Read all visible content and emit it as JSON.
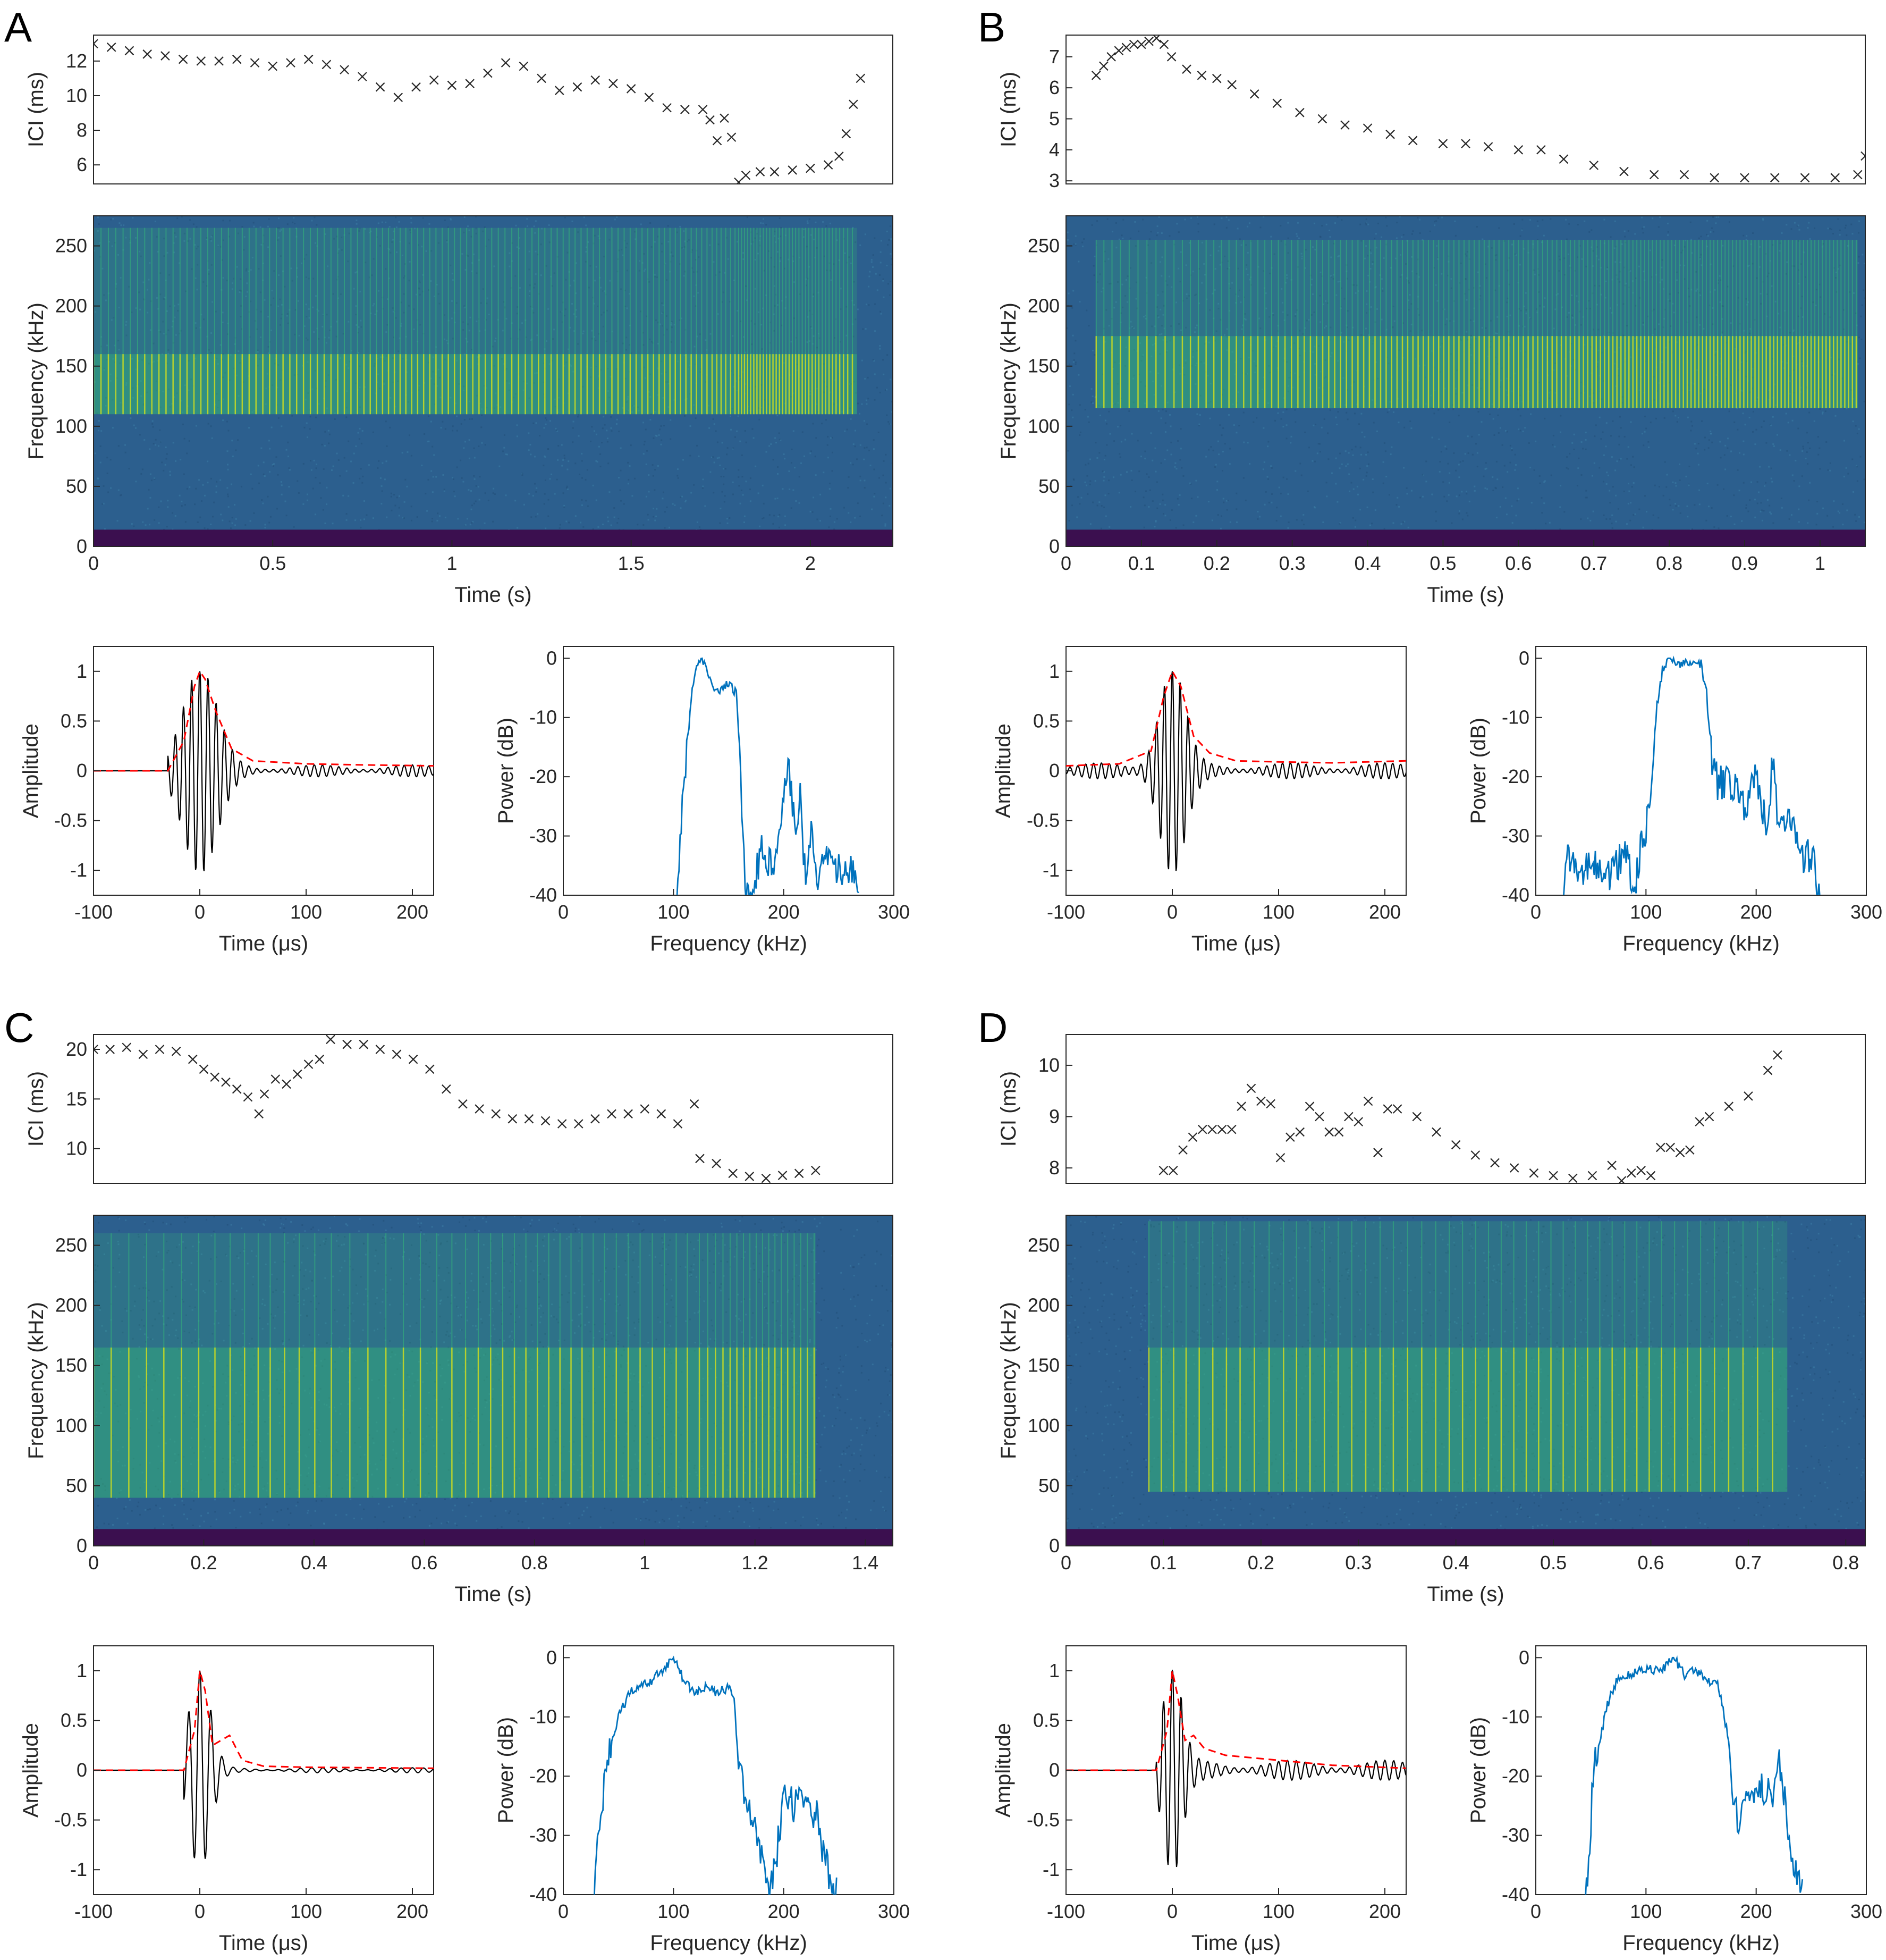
{
  "panel_labels": [
    "A",
    "B",
    "C",
    "D"
  ],
  "colors": {
    "marker": "#262626",
    "waveform": "#000000",
    "envelope": "#ff0000",
    "spectrum": "#0072bd",
    "spec_bg": "#2c5f8e",
    "spec_floor": "#3b0f4f",
    "spec_high": "#d8e219",
    "spec_mid": "#35b779"
  },
  "chart_data": [
    {
      "panel": "A",
      "ici": {
        "type": "scatter",
        "ylabel": "ICI (ms)",
        "xlim": [
          0,
          2.23
        ],
        "ylim": [
          4.9,
          13.5
        ],
        "yticks": [
          6,
          8,
          10,
          12
        ],
        "x": [
          0.0,
          0.05,
          0.1,
          0.15,
          0.2,
          0.25,
          0.3,
          0.35,
          0.4,
          0.45,
          0.5,
          0.55,
          0.6,
          0.65,
          0.7,
          0.75,
          0.8,
          0.85,
          0.9,
          0.95,
          1.0,
          1.05,
          1.1,
          1.15,
          1.2,
          1.25,
          1.3,
          1.35,
          1.4,
          1.45,
          1.5,
          1.55,
          1.6,
          1.65,
          1.7,
          1.72,
          1.74,
          1.76,
          1.78,
          1.8,
          1.82,
          1.86,
          1.9,
          1.95,
          2.0,
          2.05,
          2.08,
          2.1,
          2.12,
          2.14
        ],
        "y": [
          13.0,
          12.8,
          12.6,
          12.4,
          12.3,
          12.1,
          12.0,
          12.0,
          12.1,
          11.9,
          11.7,
          11.9,
          12.1,
          11.8,
          11.5,
          11.1,
          10.5,
          9.9,
          10.5,
          10.9,
          10.6,
          10.7,
          11.3,
          11.9,
          11.7,
          11.0,
          10.3,
          10.5,
          10.9,
          10.7,
          10.4,
          9.9,
          9.3,
          9.2,
          9.2,
          8.6,
          7.4,
          8.7,
          7.6,
          5.0,
          5.4,
          5.6,
          5.6,
          5.7,
          5.8,
          6.0,
          6.5,
          7.8,
          9.5,
          11.0
        ]
      },
      "spectrogram": {
        "type": "heatmap",
        "xlabel": "Time (s)",
        "ylabel": "Frequency (kHz)",
        "xlim": [
          0,
          2.23
        ],
        "ylim": [
          0,
          275
        ],
        "xticks": [
          0,
          0.5,
          1,
          1.5,
          2
        ],
        "yticks": [
          0,
          50,
          100,
          150,
          200,
          250
        ],
        "t_start": 0.0,
        "t_end": 2.13,
        "band_low": 110,
        "band_high": 160,
        "upper_end": 265
      },
      "waveform": {
        "type": "line",
        "xlabel": "Time (μs)",
        "ylabel": "Amplitude",
        "xlim": [
          -100,
          220
        ],
        "ylim": [
          -1.25,
          1.25
        ],
        "xticks": [
          -100,
          0,
          100,
          200
        ],
        "yticks": [
          -1,
          -0.5,
          0,
          0.5,
          1
        ],
        "onset": -30,
        "carrier_khz": 130,
        "decay_us": 16,
        "tail_amp": 0.06,
        "env_t": [
          -100,
          -30,
          -15,
          -5,
          0,
          5,
          15,
          30,
          50,
          100,
          150,
          220
        ],
        "env_v": [
          0,
          0,
          0.3,
          0.85,
          1.0,
          0.92,
          0.6,
          0.22,
          0.1,
          0.07,
          0.06,
          0.05
        ]
      },
      "spectrum": {
        "type": "line",
        "xlabel": "Frequency (kHz)",
        "ylabel": "Power (dB)",
        "xlim": [
          0,
          300
        ],
        "ylim": [
          -40,
          2
        ],
        "xticks": [
          0,
          100,
          200,
          300
        ],
        "yticks": [
          -40,
          -30,
          -20,
          -10,
          0
        ],
        "x": [
          103,
          110,
          117,
          121,
          125,
          128,
          132,
          137,
          142,
          150,
          157,
          162,
          166,
          170,
          180,
          190,
          200,
          205,
          210,
          215,
          220,
          225,
          230,
          240,
          250,
          260,
          268
        ],
        "y": [
          -40,
          -20,
          -5,
          -2,
          0,
          -1,
          -3,
          -5,
          -6,
          -4,
          -6,
          -24,
          -40,
          -40,
          -32,
          -36,
          -22,
          -19,
          -28,
          -23,
          -38,
          -29,
          -38,
          -34,
          -36,
          -35,
          -40
        ]
      }
    },
    {
      "panel": "B",
      "ici": {
        "type": "scatter",
        "ylabel": "ICI (ms)",
        "xlim": [
          0,
          1.06
        ],
        "ylim": [
          2.9,
          7.7
        ],
        "yticks": [
          3,
          4,
          5,
          6,
          7
        ],
        "x": [
          0.04,
          0.05,
          0.06,
          0.07,
          0.08,
          0.09,
          0.1,
          0.11,
          0.12,
          0.13,
          0.14,
          0.16,
          0.18,
          0.2,
          0.22,
          0.25,
          0.28,
          0.31,
          0.34,
          0.37,
          0.4,
          0.43,
          0.46,
          0.5,
          0.53,
          0.56,
          0.6,
          0.63,
          0.66,
          0.7,
          0.74,
          0.78,
          0.82,
          0.86,
          0.9,
          0.94,
          0.98,
          1.02,
          1.05,
          1.06
        ],
        "y": [
          6.4,
          6.7,
          7.0,
          7.2,
          7.3,
          7.4,
          7.4,
          7.5,
          7.6,
          7.4,
          7.0,
          6.6,
          6.4,
          6.3,
          6.1,
          5.8,
          5.5,
          5.2,
          5.0,
          4.8,
          4.7,
          4.5,
          4.3,
          4.2,
          4.2,
          4.1,
          4.0,
          4.0,
          3.7,
          3.5,
          3.3,
          3.2,
          3.2,
          3.1,
          3.1,
          3.1,
          3.1,
          3.1,
          3.2,
          3.8
        ]
      },
      "spectrogram": {
        "type": "heatmap",
        "xlabel": "Time (s)",
        "ylabel": "Frequency (kHz)",
        "xlim": [
          0,
          1.06
        ],
        "ylim": [
          0,
          275
        ],
        "xticks": [
          0,
          0.1,
          0.2,
          0.3,
          0.4,
          0.5,
          0.6,
          0.7,
          0.8,
          0.9,
          1
        ],
        "yticks": [
          0,
          50,
          100,
          150,
          200,
          250
        ],
        "t_start": 0.04,
        "t_end": 1.05,
        "band_low": 115,
        "band_high": 175,
        "upper_end": 255
      },
      "waveform": {
        "type": "line",
        "xlabel": "Time (μs)",
        "ylabel": "Amplitude",
        "xlim": [
          -100,
          220
        ],
        "ylim": [
          -1.25,
          1.25
        ],
        "xticks": [
          -100,
          0,
          100,
          200
        ],
        "yticks": [
          -1,
          -0.5,
          0,
          0.5,
          1
        ],
        "onset": -100,
        "carrier_khz": 135,
        "decay_us": 12,
        "tail_amp": 0.08,
        "env_t": [
          -100,
          -50,
          -20,
          -8,
          0,
          8,
          20,
          35,
          60,
          100,
          150,
          220
        ],
        "env_v": [
          0.05,
          0.07,
          0.2,
          0.75,
          1.0,
          0.85,
          0.35,
          0.18,
          0.1,
          0.09,
          0.08,
          0.1
        ]
      },
      "spectrum": {
        "type": "line",
        "xlabel": "Frequency (kHz)",
        "ylabel": "Power (dB)",
        "xlim": [
          0,
          300
        ],
        "ylim": [
          -40,
          2
        ],
        "xticks": [
          0,
          100,
          200,
          300
        ],
        "yticks": [
          -40,
          -30,
          -20,
          -10,
          0
        ],
        "x": [
          25,
          30,
          40,
          50,
          60,
          70,
          80,
          90,
          95,
          100,
          105,
          110,
          115,
          120,
          130,
          140,
          150,
          155,
          160,
          165,
          170,
          180,
          190,
          200,
          210,
          215,
          220,
          230,
          240,
          250,
          258
        ],
        "y": [
          -40,
          -33,
          -38,
          -34,
          -37,
          -36,
          -33,
          -38,
          -32,
          -30,
          -20,
          -8,
          -2,
          0,
          -1,
          -1,
          -1,
          -6,
          -18,
          -21,
          -21,
          -21,
          -25,
          -19,
          -30,
          -17,
          -28,
          -26,
          -34,
          -33,
          -40
        ]
      }
    },
    {
      "panel": "C",
      "ici": {
        "type": "scatter",
        "ylabel": "ICI (ms)",
        "xlim": [
          0,
          1.45
        ],
        "ylim": [
          6.5,
          21.5
        ],
        "yticks": [
          10,
          15,
          20
        ],
        "x": [
          0.0,
          0.03,
          0.06,
          0.09,
          0.12,
          0.15,
          0.18,
          0.2,
          0.22,
          0.24,
          0.26,
          0.28,
          0.3,
          0.31,
          0.33,
          0.35,
          0.37,
          0.39,
          0.41,
          0.43,
          0.46,
          0.49,
          0.52,
          0.55,
          0.58,
          0.61,
          0.64,
          0.67,
          0.7,
          0.73,
          0.76,
          0.79,
          0.82,
          0.85,
          0.88,
          0.91,
          0.94,
          0.97,
          1.0,
          1.03,
          1.06,
          1.09,
          1.1,
          1.13,
          1.16,
          1.19,
          1.22,
          1.25,
          1.28,
          1.31
        ],
        "y": [
          20.0,
          20.0,
          20.2,
          19.5,
          20.0,
          19.8,
          19.0,
          18.0,
          17.2,
          16.7,
          16.0,
          15.2,
          13.5,
          15.5,
          17.0,
          16.5,
          17.5,
          18.5,
          19.0,
          21.0,
          20.5,
          20.5,
          20.0,
          19.5,
          19.0,
          18.0,
          16.0,
          14.5,
          14.0,
          13.5,
          13.0,
          13.0,
          12.8,
          12.5,
          12.5,
          13.0,
          13.5,
          13.5,
          14.0,
          13.5,
          12.5,
          14.5,
          9.0,
          8.5,
          7.5,
          7.2,
          7.0,
          7.3,
          7.5,
          7.8
        ]
      },
      "spectrogram": {
        "type": "heatmap",
        "xlabel": "Time (s)",
        "ylabel": "Frequency (kHz)",
        "xlim": [
          0,
          1.45
        ],
        "ylim": [
          0,
          275
        ],
        "xticks": [
          0,
          0.2,
          0.4,
          0.6,
          0.8,
          1,
          1.2,
          1.4
        ],
        "yticks": [
          0,
          50,
          100,
          150,
          200,
          250
        ],
        "t_start": 0.0,
        "t_end": 1.31,
        "band_low": 40,
        "band_high": 165,
        "upper_end": 260
      },
      "waveform": {
        "type": "line",
        "xlabel": "Time (μs)",
        "ylabel": "Amplitude",
        "xlim": [
          -100,
          220
        ],
        "ylim": [
          -1.25,
          1.25
        ],
        "xticks": [
          -100,
          0,
          100,
          200
        ],
        "yticks": [
          -1,
          -0.5,
          0,
          0.5,
          1
        ],
        "onset": -15,
        "carrier_khz": 95,
        "decay_us": 10,
        "tail_amp": 0.025,
        "env_t": [
          -100,
          -15,
          -5,
          0,
          5,
          12,
          20,
          28,
          40,
          60,
          100,
          220
        ],
        "env_v": [
          0,
          0,
          0.4,
          1.0,
          0.8,
          0.25,
          0.3,
          0.35,
          0.1,
          0.04,
          0.03,
          0.02
        ]
      },
      "spectrum": {
        "type": "line",
        "xlabel": "Frequency (kHz)",
        "ylabel": "Power (dB)",
        "xlim": [
          0,
          300
        ],
        "ylim": [
          -40,
          2
        ],
        "xticks": [
          0,
          100,
          200,
          300
        ],
        "yticks": [
          -40,
          -30,
          -20,
          -10,
          0
        ],
        "x": [
          28,
          30,
          35,
          40,
          50,
          60,
          70,
          80,
          90,
          95,
          100,
          110,
          120,
          130,
          140,
          150,
          155,
          160,
          170,
          180,
          185,
          190,
          200,
          210,
          220,
          230,
          240,
          248
        ],
        "y": [
          -40,
          -34,
          -25,
          -18,
          -10,
          -6,
          -5,
          -4,
          -2,
          -1,
          0,
          -4,
          -6,
          -5,
          -6,
          -5,
          -7,
          -20,
          -26,
          -33,
          -40,
          -38,
          -24,
          -25,
          -23,
          -27,
          -36,
          -40
        ]
      }
    },
    {
      "panel": "D",
      "ici": {
        "type": "scatter",
        "ylabel": "ICI (ms)",
        "xlim": [
          0,
          0.82
        ],
        "ylim": [
          7.7,
          10.6
        ],
        "yticks": [
          8,
          9,
          10
        ],
        "x": [
          0.1,
          0.11,
          0.12,
          0.13,
          0.14,
          0.15,
          0.16,
          0.17,
          0.18,
          0.19,
          0.2,
          0.21,
          0.22,
          0.23,
          0.24,
          0.25,
          0.26,
          0.27,
          0.28,
          0.29,
          0.3,
          0.31,
          0.32,
          0.33,
          0.34,
          0.36,
          0.38,
          0.4,
          0.42,
          0.44,
          0.46,
          0.48,
          0.5,
          0.52,
          0.54,
          0.56,
          0.57,
          0.58,
          0.59,
          0.6,
          0.61,
          0.62,
          0.63,
          0.64,
          0.65,
          0.66,
          0.68,
          0.7,
          0.72,
          0.73
        ],
        "y": [
          7.95,
          7.95,
          8.35,
          8.6,
          8.75,
          8.75,
          8.75,
          8.75,
          9.2,
          9.55,
          9.3,
          9.25,
          8.2,
          8.6,
          8.7,
          9.2,
          9.0,
          8.7,
          8.7,
          9.0,
          8.9,
          9.3,
          8.3,
          9.15,
          9.15,
          9.0,
          8.7,
          8.45,
          8.25,
          8.1,
          8.0,
          7.9,
          7.85,
          7.8,
          7.85,
          8.05,
          7.75,
          7.9,
          7.95,
          7.85,
          8.4,
          8.4,
          8.3,
          8.35,
          8.9,
          9.0,
          9.2,
          9.4,
          9.9,
          10.2
        ]
      },
      "spectrogram": {
        "type": "heatmap",
        "xlabel": "Time (s)",
        "ylabel": "Frequency (kHz)",
        "xlim": [
          0,
          0.82
        ],
        "ylim": [
          0,
          275
        ],
        "xticks": [
          0,
          0.1,
          0.2,
          0.3,
          0.4,
          0.5,
          0.6,
          0.7,
          0.8
        ],
        "yticks": [
          0,
          50,
          100,
          150,
          200,
          250
        ],
        "t_start": 0.085,
        "t_end": 0.74,
        "band_low": 45,
        "band_high": 165,
        "upper_end": 270
      },
      "waveform": {
        "type": "line",
        "xlabel": "Time (μs)",
        "ylabel": "Amplitude",
        "xlim": [
          -100,
          220
        ],
        "ylim": [
          -1.25,
          1.25
        ],
        "xticks": [
          -100,
          0,
          100,
          200
        ],
        "yticks": [
          -1,
          -0.5,
          0,
          0.5,
          1
        ],
        "onset": -15,
        "carrier_khz": 120,
        "decay_us": 9,
        "tail_amp": 0.1,
        "env_t": [
          -100,
          -15,
          -5,
          0,
          5,
          12,
          20,
          30,
          50,
          100,
          150,
          220
        ],
        "env_v": [
          0,
          0,
          0.4,
          1.0,
          0.75,
          0.3,
          0.35,
          0.22,
          0.15,
          0.1,
          0.05,
          0.02
        ]
      },
      "spectrum": {
        "type": "line",
        "xlabel": "Frequency (kHz)",
        "ylabel": "Power (dB)",
        "xlim": [
          0,
          300
        ],
        "ylim": [
          -40,
          2
        ],
        "xticks": [
          0,
          100,
          200,
          300
        ],
        "yticks": [
          -40,
          -30,
          -20,
          -10,
          0
        ],
        "x": [
          45,
          48,
          52,
          58,
          65,
          75,
          85,
          95,
          105,
          115,
          120,
          125,
          135,
          145,
          155,
          165,
          175,
          180,
          185,
          190,
          200,
          210,
          215,
          220,
          225,
          230,
          238,
          242
        ],
        "y": [
          -40,
          -36,
          -20,
          -14,
          -8,
          -3,
          -3,
          -2,
          -2,
          -2,
          -1,
          0,
          -3,
          -2,
          -4,
          -4,
          -14,
          -24,
          -30,
          -23,
          -22,
          -22,
          -27,
          -17,
          -23,
          -30,
          -38,
          -40
        ]
      }
    }
  ]
}
